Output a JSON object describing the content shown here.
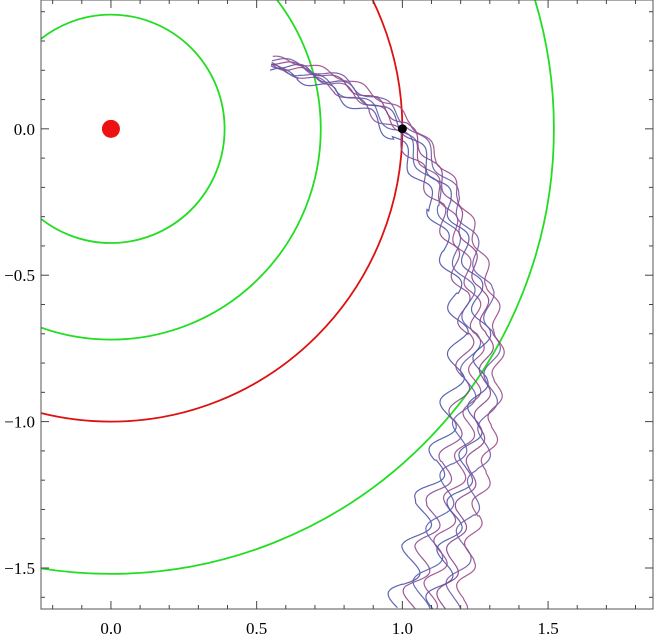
{
  "chart_data": {
    "type": "line",
    "title": "",
    "xlabel": "",
    "ylabel": "",
    "xlim": [
      -0.24,
      1.86
    ],
    "ylim": [
      -1.64,
      0.44
    ],
    "grid": false,
    "x_ticks": [
      {
        "value": 0.0,
        "label": "0.0"
      },
      {
        "value": 0.5,
        "label": "0.5"
      },
      {
        "value": 1.0,
        "label": "1.0"
      },
      {
        "value": 1.5,
        "label": "1.5"
      }
    ],
    "y_ticks": [
      {
        "value": 0.0,
        "label": "0.0"
      },
      {
        "value": -0.5,
        "label": "−0.5"
      },
      {
        "value": -1.0,
        "label": "−1.0"
      },
      {
        "value": -1.5,
        "label": "−1.5"
      }
    ],
    "circles": [
      {
        "center": [
          0,
          0
        ],
        "r": 0.39,
        "color": "#22dd22"
      },
      {
        "center": [
          0,
          0
        ],
        "r": 0.72,
        "color": "#22dd22"
      },
      {
        "center": [
          0,
          0
        ],
        "r": 1.0,
        "color": "#dd1111"
      },
      {
        "center": [
          0,
          0
        ],
        "r": 1.52,
        "color": "#22dd22"
      }
    ],
    "points": [
      {
        "name": "central-body",
        "x": 0.0,
        "y": 0.0,
        "color": "#ee1111"
      },
      {
        "name": "start-point",
        "x": 1.0,
        "y": 0.0,
        "color": "#000000"
      }
    ],
    "trajectory_backbone": [
      [
        0.55,
        0.22
      ],
      [
        0.65,
        0.2
      ],
      [
        0.78,
        0.15
      ],
      [
        0.9,
        0.08
      ],
      [
        1.0,
        0.0
      ],
      [
        1.08,
        -0.12
      ],
      [
        1.15,
        -0.25
      ],
      [
        1.2,
        -0.4
      ],
      [
        1.24,
        -0.55
      ],
      [
        1.26,
        -0.7
      ],
      [
        1.25,
        -0.85
      ],
      [
        1.23,
        -1.0
      ],
      [
        1.2,
        -1.15
      ],
      [
        1.16,
        -1.3
      ],
      [
        1.13,
        -1.45
      ],
      [
        1.1,
        -1.58
      ],
      [
        1.08,
        -1.66
      ]
    ],
    "series": [
      {
        "values": [
          {
            "offset": -0.05,
            "amp": 0.03,
            "freq": 13,
            "color": "#4a55a8"
          }
        ]
      },
      {
        "values": [
          {
            "offset": -0.03,
            "amp": 0.025,
            "freq": 14,
            "color": "#8a4a90"
          }
        ]
      },
      {
        "values": [
          {
            "offset": -0.015,
            "amp": 0.028,
            "freq": 12,
            "color": "#5a5fb0"
          }
        ]
      },
      {
        "values": [
          {
            "offset": 0.0,
            "amp": 0.022,
            "freq": 15,
            "color": "#9a4a88"
          }
        ]
      },
      {
        "values": [
          {
            "offset": 0.012,
            "amp": 0.026,
            "freq": 13.5,
            "color": "#4a55a8"
          }
        ]
      },
      {
        "values": [
          {
            "offset": 0.025,
            "amp": 0.02,
            "freq": 14.5,
            "color": "#8a3f88"
          }
        ]
      },
      {
        "values": [
          {
            "offset": 0.04,
            "amp": 0.024,
            "freq": 12.5,
            "color": "#6a5aa8"
          }
        ]
      },
      {
        "values": [
          {
            "offset": 0.055,
            "amp": 0.018,
            "freq": 15.5,
            "color": "#9a4a88"
          }
        ]
      }
    ]
  }
}
